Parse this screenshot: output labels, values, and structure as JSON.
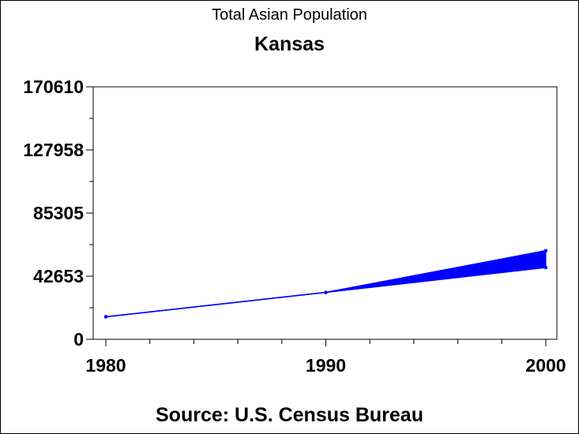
{
  "title": "Total Asian Population",
  "subtitle": "Kansas",
  "footnote": "Source: U.S. Census Bureau",
  "colors": {
    "series": "#0000ff",
    "axis": "#000000",
    "background": "#ffffff"
  },
  "chart_data": {
    "type": "area",
    "title": "Total Asian Population",
    "subtitle": "Kansas",
    "xlabel": "",
    "ylabel": "",
    "x": [
      1980,
      1990,
      2000
    ],
    "xlim": [
      1980,
      2000
    ],
    "x_ticks": [
      "1980",
      "1990",
      "2000"
    ],
    "ylim": [
      0,
      170610
    ],
    "y_ticks": [
      "0",
      "42653",
      "85305",
      "127958",
      "170610"
    ],
    "grid": false,
    "series": [
      {
        "values_upper": [
          15200,
          31700,
          59900
        ],
        "values_lower": [
          15200,
          31700,
          48500
        ]
      }
    ]
  }
}
